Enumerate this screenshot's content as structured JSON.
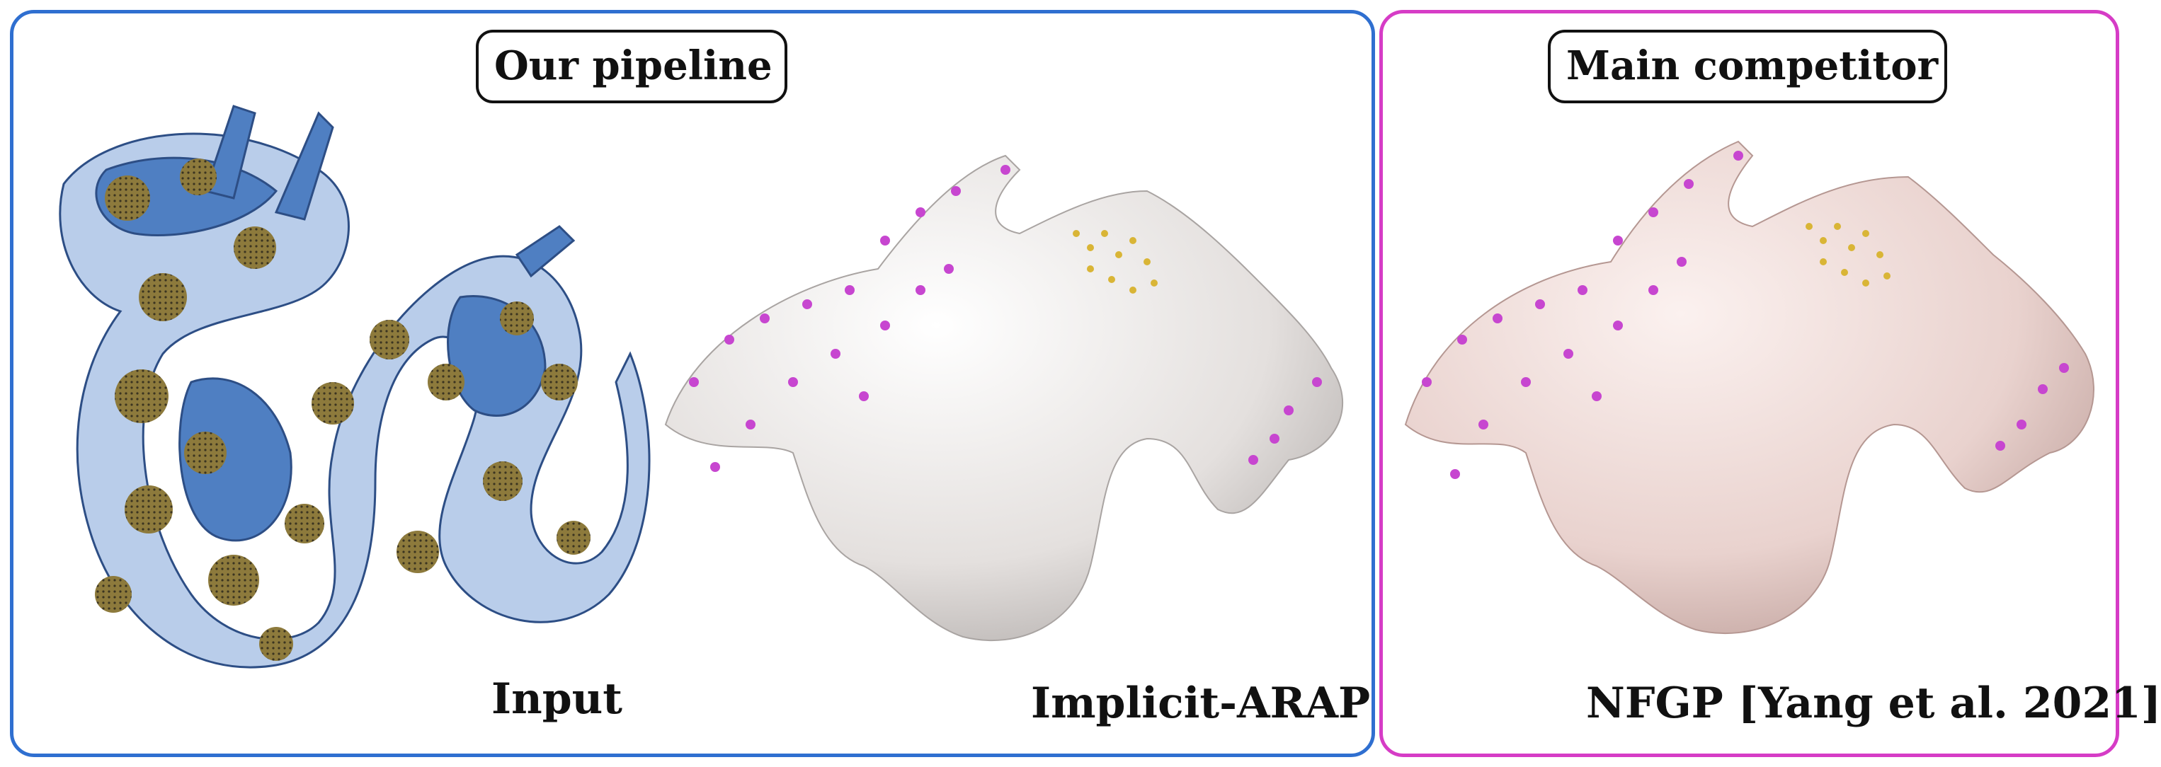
{
  "panels": {
    "left": {
      "title": "Our pipeline",
      "border_color": "#2f6fd0"
    },
    "right": {
      "title": "Main competitor",
      "border_color": "#d63cc6"
    }
  },
  "captions": {
    "input": "Input",
    "arap": "Implicit-ARAP",
    "nfgp": "NFGP [Yang et al. 2021]"
  },
  "figures": [
    {
      "id": "input",
      "content": "dragon-mesh-blue-gold",
      "colors": [
        "#4f7fc2",
        "#b9cdea",
        "#8d7a3c"
      ]
    },
    {
      "id": "arap",
      "content": "dragon-render-white",
      "colors": [
        "#ece8e6",
        "#c746d0",
        "#d9b536",
        "#c0544a"
      ]
    },
    {
      "id": "nfgp",
      "content": "dragon-render-pink",
      "colors": [
        "#f0dcd9",
        "#c746d0",
        "#d9b536",
        "#b8433a"
      ]
    }
  ]
}
